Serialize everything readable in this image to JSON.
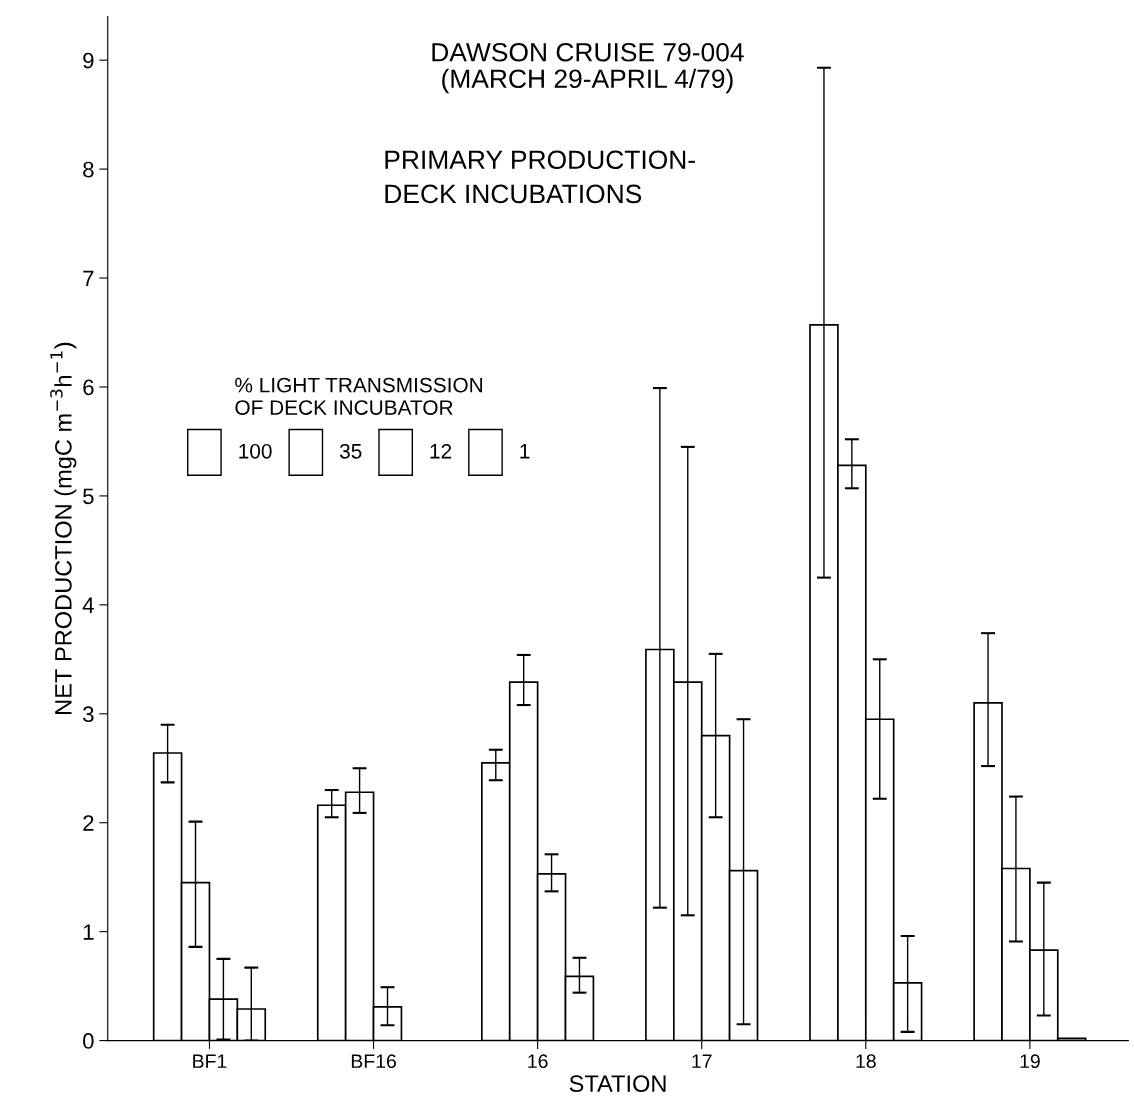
{
  "chart_data": {
    "type": "bar",
    "title": "DAWSON CRUISE 79-004\n(MARCH 29-APRIL 4/79)",
    "subtitle": "PRIMARY PRODUCTION-\nDECK INCUBATIONS",
    "xlabel": "STATION",
    "ylabel": "NET PRODUCTION (mgC m$^{−3}$h$^{−1}$)",
    "legend_title": "% LIGHT TRANSMISSION\nOF DECK INCUBATOR",
    "categories": [
      "BF1",
      "BF16",
      "16",
      "17",
      "18",
      "19"
    ],
    "series": [
      {
        "name": "100",
        "color": "#ffffff",
        "values": [
          2.64,
          2.16,
          2.55,
          3.59,
          6.57,
          3.1
        ],
        "errors": [
          [
            2.37,
            2.9
          ],
          [
            2.05,
            2.3
          ],
          [
            2.39,
            2.67
          ],
          [
            1.22,
            5.99
          ],
          [
            4.25,
            8.93
          ],
          [
            2.52,
            3.74
          ]
        ]
      },
      {
        "name": "35",
        "color": "#ffffff",
        "values": [
          1.45,
          2.28,
          3.29,
          3.29,
          5.28,
          1.58
        ],
        "errors": [
          [
            0.86,
            2.01
          ],
          [
            2.09,
            2.5
          ],
          [
            3.08,
            3.54
          ],
          [
            1.15,
            5.45
          ],
          [
            5.07,
            5.52
          ],
          [
            0.91,
            2.24
          ]
        ]
      },
      {
        "name": "12",
        "color": "#ffffff",
        "values": [
          0.38,
          0.31,
          1.53,
          2.8,
          2.95,
          0.83
        ],
        "errors": [
          0.37,
          [
            0.14,
            0.49
          ],
          [
            1.37,
            1.71
          ],
          [
            2.05,
            3.55
          ],
          [
            2.22,
            3.5
          ],
          [
            0.23,
            1.45
          ]
        ]
      },
      {
        "name": "1",
        "color": "#ffffff",
        "values": [
          0.29,
          null,
          0.59,
          1.56,
          0.53,
          0.02
        ],
        "errors": [
          [
            0,
            0.67
          ],
          null,
          [
            0.44,
            0.76
          ],
          [
            0.15,
            2.95
          ],
          [
            0.08,
            0.96
          ],
          null
        ]
      }
    ],
    "ylim": [
      0,
      9.4
    ],
    "yticks": [
      0,
      1,
      2,
      3,
      4,
      5,
      6,
      7,
      8,
      9
    ],
    "grid": false,
    "legend": "left"
  }
}
